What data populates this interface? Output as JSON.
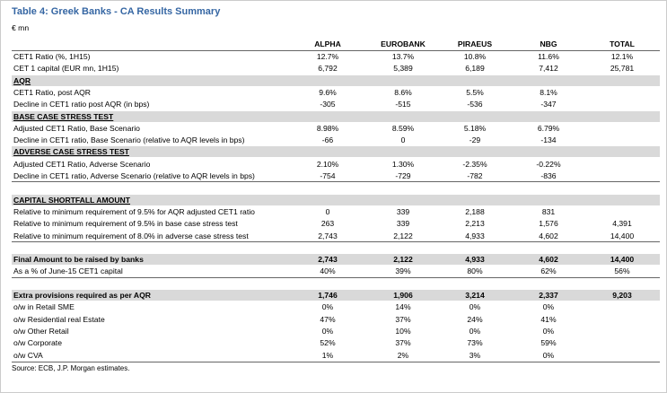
{
  "title": "Table 4: Greek Banks - CA Results Summary",
  "unit": "€ mn",
  "columns": [
    "ALPHA",
    "EUROBANK",
    "PIRAEUS",
    "NBG",
    "TOTAL"
  ],
  "sections": [
    {
      "rows": [
        {
          "label": "CET1 Ratio (%, 1H15)",
          "cells": [
            "12.7%",
            "13.7%",
            "10.8%",
            "11.6%",
            "12.1%"
          ]
        },
        {
          "label": "CET 1 capital (EUR mn, 1H15)",
          "cells": [
            "6,792",
            "5,389",
            "6,189",
            "7,412",
            "25,781"
          ]
        }
      ]
    },
    {
      "heading": {
        "label": "AQR"
      },
      "rows": [
        {
          "label": "CET1 Ratio, post AQR",
          "cells": [
            "9.6%",
            "8.6%",
            "5.5%",
            "8.1%",
            null
          ]
        },
        {
          "label": "Decline in CET1 ratio post AQR (in bps)",
          "cells": [
            "-305",
            "-515",
            "-536",
            "-347",
            null
          ]
        }
      ]
    },
    {
      "heading": {
        "label": "BASE CASE STRESS TEST"
      },
      "rows": [
        {
          "label": "Adjusted CET1 Ratio, Base Scenario",
          "cells": [
            "8.98%",
            "8.59%",
            "5.18%",
            "6.79%",
            null
          ]
        },
        {
          "label": "Decline in CET1 ratio, Base Scenario (relative to AQR levels in bps)",
          "cells": [
            "-66",
            "0",
            "-29",
            "-134",
            null
          ]
        }
      ]
    },
    {
      "heading": {
        "label": "ADVERSE CASE STRESS TEST"
      },
      "rows": [
        {
          "label": "Adjusted CET1 Ratio, Adverse Scenario",
          "cells": [
            "2.10%",
            "1.30%",
            "-2.35%",
            "-0.22%",
            null
          ]
        },
        {
          "label": "Decline in CET1 ratio, Adverse Scenario (relative to AQR levels in bps)",
          "cells": [
            "-754",
            "-729",
            "-782",
            "-836",
            null
          ]
        }
      ]
    },
    {
      "heading": {
        "label": "CAPITAL SHORTFALL AMOUNT"
      },
      "rows": [
        {
          "label": "Relative to minimum requirement of 9.5% for AQR adjusted CET1 ratio",
          "cells": [
            "0",
            "339",
            "2,188",
            "831",
            null
          ]
        },
        {
          "label": "Relative to minimum requirement of 9.5% in base case stress test",
          "cells": [
            "263",
            "339",
            "2,213",
            "1,576",
            "4,391"
          ]
        },
        {
          "label": "Relative to minimum requirement of 8.0% in adverse case stress test",
          "cells": [
            "2,743",
            "2,122",
            "4,933",
            "4,602",
            "14,400"
          ]
        }
      ]
    },
    {
      "heading": {
        "label": "Final Amount to be raised by banks",
        "cells": [
          "2,743",
          "2,122",
          "4,933",
          "4,602",
          "14,400"
        ]
      },
      "rows": [
        {
          "label": "As a % of June-15 CET1 capital",
          "cells": [
            "40%",
            "39%",
            "80%",
            "62%",
            "56%"
          ]
        }
      ]
    },
    {
      "heading": {
        "label": "Extra provisions required as per AQR",
        "cells": [
          "1,746",
          "1,906",
          "3,214",
          "2,337",
          "9,203"
        ]
      },
      "rows": [
        {
          "label": "o/w in Retail SME",
          "cells": [
            "0%",
            "14%",
            "0%",
            "0%",
            null
          ]
        },
        {
          "label": "o/w Residential real Estate",
          "cells": [
            "47%",
            "37%",
            "24%",
            "41%",
            null
          ]
        },
        {
          "label": "o/w Other Retail",
          "cells": [
            "0%",
            "10%",
            "0%",
            "0%",
            null
          ]
        },
        {
          "label": "o/w Corporate",
          "cells": [
            "52%",
            "37%",
            "73%",
            "59%",
            null
          ]
        },
        {
          "label": "o/w CVA",
          "cells": [
            "1%",
            "2%",
            "3%",
            "0%",
            null
          ]
        }
      ]
    }
  ],
  "source": "Source: ECB, J.P. Morgan estimates."
}
